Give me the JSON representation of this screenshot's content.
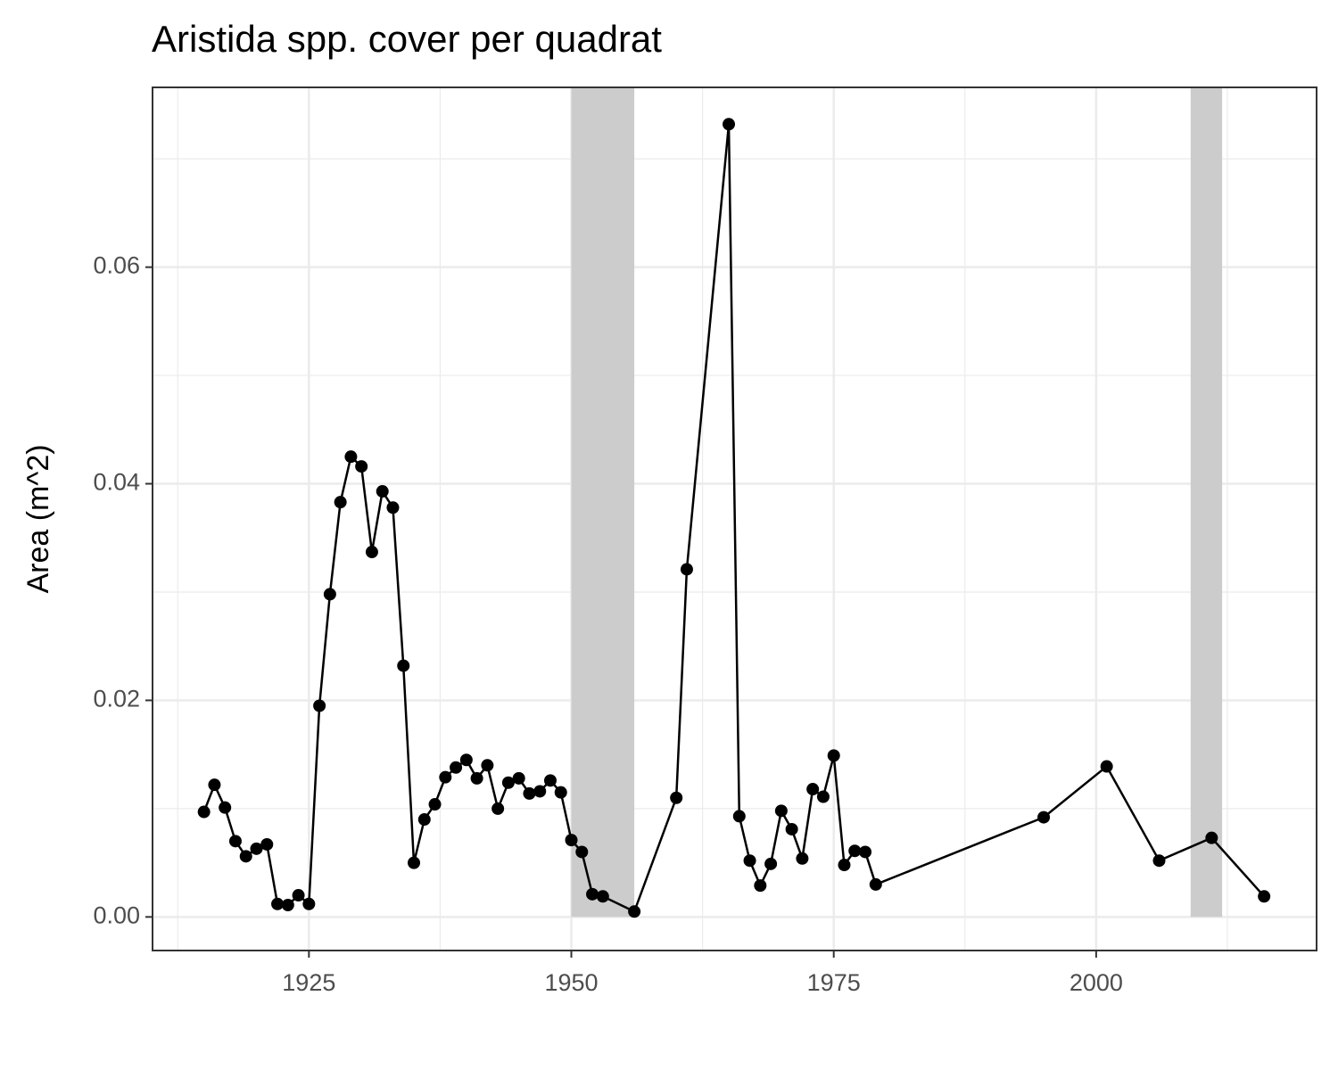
{
  "chart_data": {
    "type": "line",
    "title": "Aristida spp. cover per quadrat",
    "y_label": "Area (m^2)",
    "x": [
      1915,
      1916,
      1917,
      1918,
      1919,
      1920,
      1921,
      1922,
      1923,
      1924,
      1925,
      1926,
      1927,
      1928,
      1929,
      1930,
      1931,
      1932,
      1933,
      1934,
      1935,
      1936,
      1937,
      1938,
      1939,
      1940,
      1941,
      1942,
      1943,
      1944,
      1945,
      1946,
      1947,
      1948,
      1949,
      1950,
      1951,
      1952,
      1953,
      1956,
      1960,
      1961,
      1965,
      1966,
      1967,
      1968,
      1969,
      1970,
      1971,
      1972,
      1973,
      1974,
      1975,
      1976,
      1977,
      1978,
      1979,
      1995,
      2001,
      2006,
      2011,
      2016
    ],
    "values": [
      0.0097,
      0.0122,
      0.0101,
      0.007,
      0.0056,
      0.0063,
      0.0067,
      0.0012,
      0.0011,
      0.002,
      0.0012,
      0.0195,
      0.0298,
      0.0383,
      0.0425,
      0.0416,
      0.0337,
      0.0393,
      0.0378,
      0.0232,
      0.005,
      0.009,
      0.0104,
      0.0129,
      0.0138,
      0.0145,
      0.0128,
      0.014,
      0.01,
      0.0124,
      0.0128,
      0.0114,
      0.0116,
      0.0126,
      0.0115,
      0.0071,
      0.006,
      0.0021,
      0.0019,
      0.0005,
      0.011,
      0.0321,
      0.0732,
      0.0093,
      0.0052,
      0.0029,
      0.0049,
      0.0098,
      0.0081,
      0.0054,
      0.0118,
      0.0111,
      0.0149,
      0.0048,
      0.0061,
      0.006,
      0.003,
      0.0092,
      0.0139,
      0.0052,
      0.0073,
      0.0019
    ],
    "color": "#000000",
    "shaded_periods": [
      [
        1950,
        1956
      ],
      [
        2009,
        2012
      ]
    ],
    "shade_color": "#cccccc",
    "xlim": [
      1910.1,
      2021.0
    ],
    "ylim": [
      -0.0031,
      0.0766
    ],
    "xticks": [
      1925,
      1950,
      1975,
      2000
    ],
    "yticks": [
      {
        "value": 0,
        "label": "0.00"
      },
      {
        "value": 0.02,
        "label": "0.02"
      },
      {
        "value": 0.04,
        "label": "0.04"
      },
      {
        "value": 0.06,
        "label": "0.06"
      }
    ],
    "x_minor_ticks": [
      1912.5,
      1937.5,
      1962.5,
      1987.5,
      2012.5
    ],
    "y_minor_ticks": [
      0.01,
      0.03,
      0.05,
      0.07
    ],
    "grid": true
  }
}
